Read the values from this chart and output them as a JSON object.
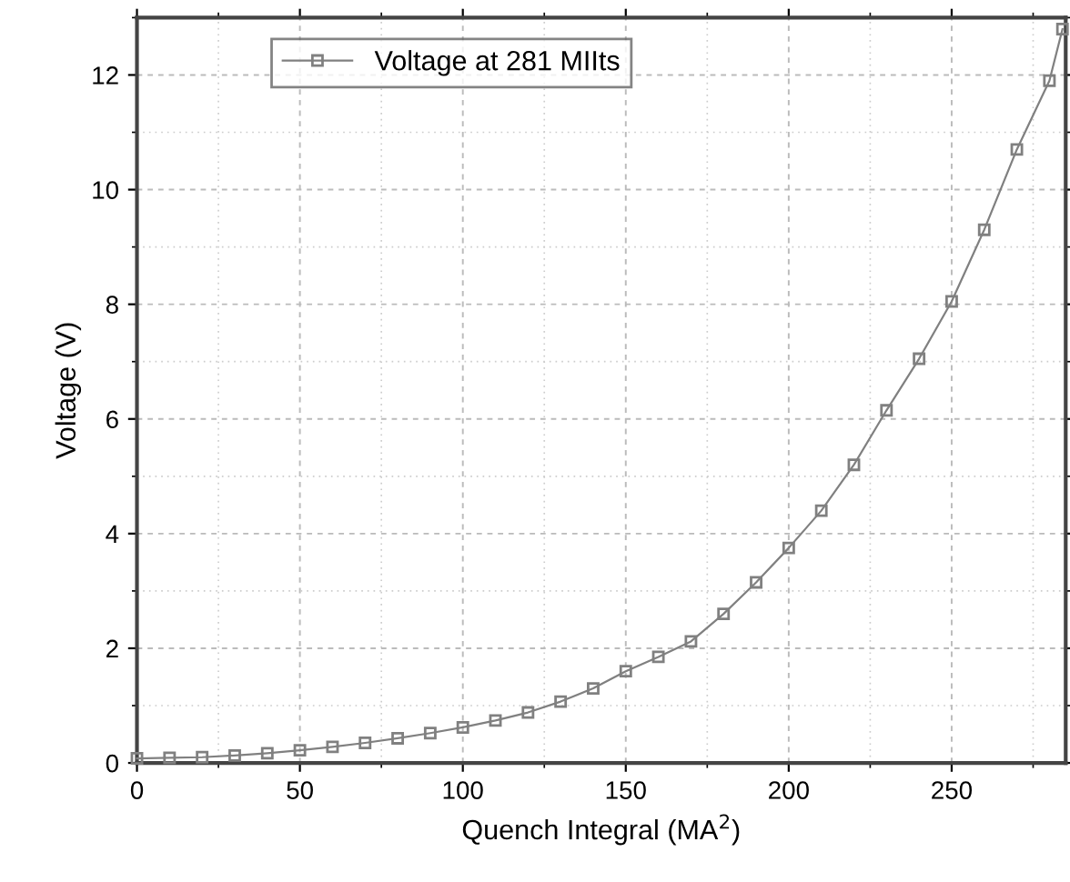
{
  "chart_data": {
    "type": "line",
    "xlabel": "Quench Integral (MA$^{2}$)",
    "ylabel": "Voltage (V)",
    "x": [
      0,
      10,
      20,
      30,
      40,
      50,
      60,
      70,
      80,
      90,
      100,
      110,
      120,
      130,
      140,
      150,
      160,
      170,
      180,
      190,
      200,
      210,
      220,
      230,
      240,
      250,
      260,
      270,
      280,
      284
    ],
    "series": [
      {
        "name": "Voltage at 281 MIIts",
        "color": "#808080",
        "values": [
          0.08,
          0.09,
          0.1,
          0.13,
          0.17,
          0.22,
          0.28,
          0.35,
          0.43,
          0.52,
          0.62,
          0.74,
          0.88,
          1.07,
          1.3,
          1.6,
          1.85,
          2.12,
          2.6,
          3.15,
          3.75,
          4.4,
          5.2,
          6.15,
          7.05,
          8.05,
          9.3,
          10.7,
          11.9,
          12.8
        ]
      }
    ],
    "xlim": [
      0,
      285
    ],
    "ylim": [
      0,
      13
    ],
    "xticks": [
      0,
      50,
      100,
      150,
      200,
      250
    ],
    "yticks": [
      0,
      2,
      4,
      6,
      8,
      10,
      12
    ],
    "grid": true,
    "legend": "top left",
    "marker": "square",
    "line_style": "solid"
  }
}
